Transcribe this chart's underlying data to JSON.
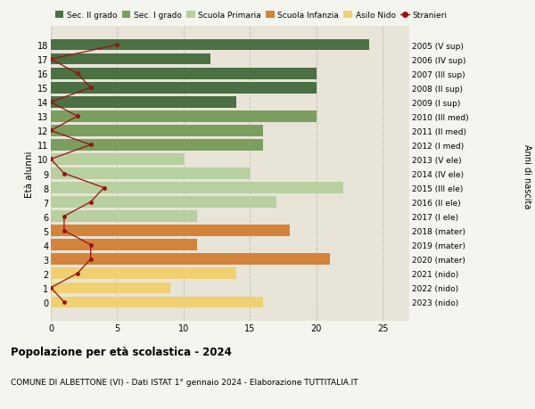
{
  "ages": [
    18,
    17,
    16,
    15,
    14,
    13,
    12,
    11,
    10,
    9,
    8,
    7,
    6,
    5,
    4,
    3,
    2,
    1,
    0
  ],
  "right_labels": [
    "2005 (V sup)",
    "2006 (IV sup)",
    "2007 (III sup)",
    "2008 (II sup)",
    "2009 (I sup)",
    "2010 (III med)",
    "2011 (II med)",
    "2012 (I med)",
    "2013 (V ele)",
    "2014 (IV ele)",
    "2015 (III ele)",
    "2016 (II ele)",
    "2017 (I ele)",
    "2018 (mater)",
    "2019 (mater)",
    "2020 (mater)",
    "2021 (nido)",
    "2022 (nido)",
    "2023 (nido)"
  ],
  "bar_values": [
    24,
    12,
    20,
    20,
    14,
    20,
    16,
    16,
    10,
    15,
    22,
    17,
    11,
    18,
    11,
    21,
    14,
    9,
    16
  ],
  "bar_colors": [
    "#4a7043",
    "#4a7043",
    "#4a7043",
    "#4a7043",
    "#4a7043",
    "#7a9e5e",
    "#7a9e5e",
    "#7a9e5e",
    "#b8cfa0",
    "#b8cfa0",
    "#b8cfa0",
    "#b8cfa0",
    "#b8cfa0",
    "#d4843a",
    "#d4843a",
    "#d4843a",
    "#f0d070",
    "#f0d070",
    "#f0d070"
  ],
  "stranieri_values": [
    5,
    0,
    2,
    3,
    0,
    2,
    0,
    3,
    0,
    1,
    4,
    3,
    1,
    1,
    3,
    3,
    2,
    0,
    1
  ],
  "legend_labels": [
    "Sec. II grado",
    "Sec. I grado",
    "Scuola Primaria",
    "Scuola Infanzia",
    "Asilo Nido",
    "Stranieri"
  ],
  "legend_colors": [
    "#4a7043",
    "#7a9e5e",
    "#b8cfa0",
    "#d4843a",
    "#f0d070",
    "#a01010"
  ],
  "title": "Popolazione per età scolastica - 2024",
  "subtitle": "COMUNE DI ALBETTONE (VI) - Dati ISTAT 1° gennaio 2024 - Elaborazione TUTTITALIA.IT",
  "ylabel_left": "Età alunni",
  "ylabel_right": "Anni di nascita",
  "xlim": [
    0,
    27
  ],
  "xticks": [
    0,
    5,
    10,
    15,
    20,
    25
  ],
  "background_color": "#f5f5f0",
  "bar_background": "#e8e4d8",
  "stranieri_color": "#991111"
}
